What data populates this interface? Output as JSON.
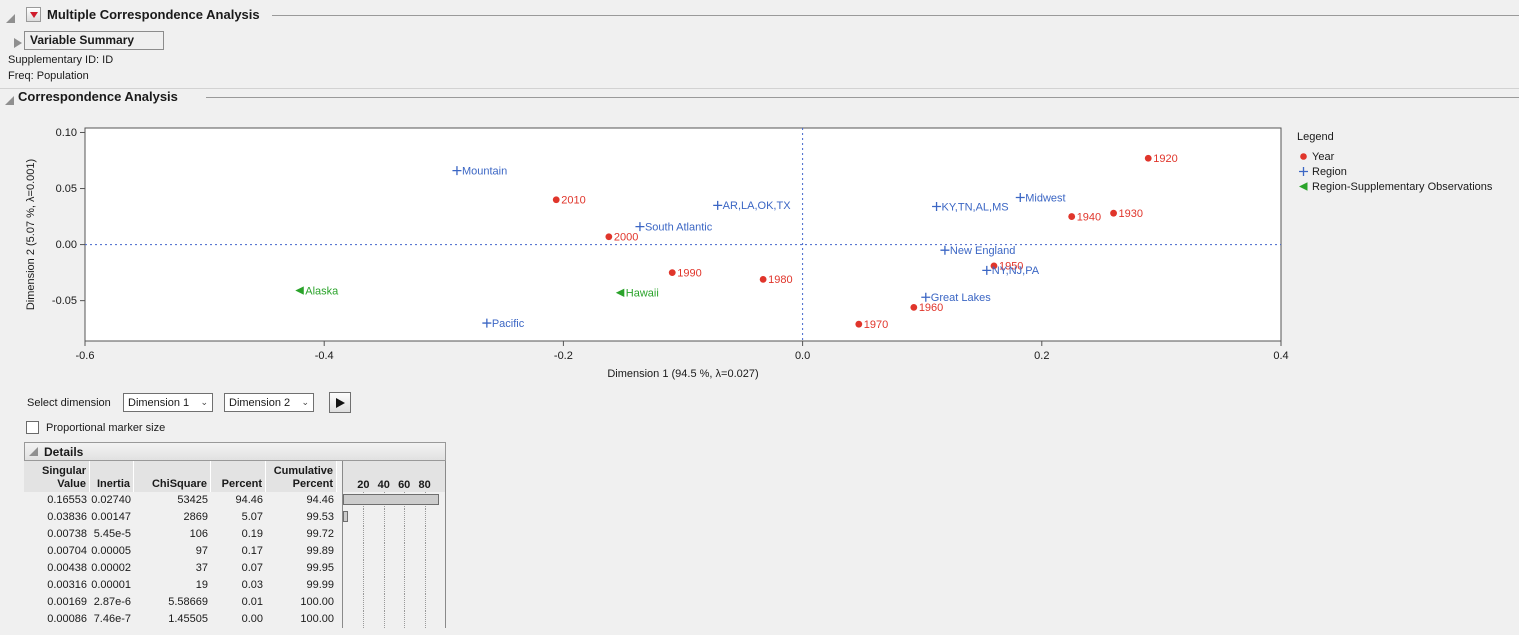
{
  "header": {
    "title": "Multiple Correspondence Analysis"
  },
  "sections": {
    "variable_summary": "Variable Summary",
    "correspondence_analysis": "Correspondence Analysis",
    "details": "Details"
  },
  "info": {
    "supplementary_id": "Supplementary ID: ID",
    "freq": "Freq: Population"
  },
  "chart_data": {
    "type": "scatter",
    "xlabel": "Dimension 1  (94.5 %, λ=0.027)",
    "ylabel": "Dimension 2  (5.07 %, λ=0.001)",
    "xlim": [
      -0.6,
      0.4
    ],
    "ylim": [
      -0.086,
      0.104
    ],
    "x_ticks": [
      {
        "v": -0.6,
        "label": "-0.6"
      },
      {
        "v": -0.4,
        "label": "-0.4"
      },
      {
        "v": -0.2,
        "label": "-0.2"
      },
      {
        "v": 0,
        "label": "0.0"
      },
      {
        "v": 0.2,
        "label": "0.2"
      },
      {
        "v": 0.4,
        "label": "0.4"
      }
    ],
    "y_ticks": [
      {
        "v": 0.1,
        "label": "0.10"
      },
      {
        "v": 0.05,
        "label": "0.05"
      },
      {
        "v": 0.0,
        "label": "0.00"
      },
      {
        "v": -0.05,
        "label": "-0.05"
      }
    ],
    "ref_line_color": "#4466cc",
    "grid": false,
    "legend_position": "right",
    "series": [
      {
        "name": "Year",
        "marker": "dot",
        "color": "#e0352b",
        "points": [
          {
            "label": "1920",
            "x": 0.289,
            "y": 0.077
          },
          {
            "label": "2010",
            "x": -0.206,
            "y": 0.04
          },
          {
            "label": "1930",
            "x": 0.26,
            "y": 0.028
          },
          {
            "label": "1940",
            "x": 0.225,
            "y": 0.025
          },
          {
            "label": "2000",
            "x": -0.162,
            "y": 0.007
          },
          {
            "label": "1950",
            "x": 0.16,
            "y": -0.019
          },
          {
            "label": "1990",
            "x": -0.109,
            "y": -0.025
          },
          {
            "label": "1980",
            "x": -0.033,
            "y": -0.031
          },
          {
            "label": "1960",
            "x": 0.093,
            "y": -0.056
          },
          {
            "label": "1970",
            "x": 0.047,
            "y": -0.071
          }
        ]
      },
      {
        "name": "Region",
        "marker": "plus",
        "color": "#3b66c4",
        "points": [
          {
            "label": "Mountain",
            "x": -0.289,
            "y": 0.066
          },
          {
            "label": "AR,LA,OK,TX",
            "x": -0.071,
            "y": 0.035
          },
          {
            "label": "KY,TN,AL,MS",
            "x": 0.112,
            "y": 0.034
          },
          {
            "label": "Midwest",
            "x": 0.182,
            "y": 0.042
          },
          {
            "label": "South Atlantic",
            "x": -0.136,
            "y": 0.016
          },
          {
            "label": "New England",
            "x": 0.119,
            "y": -0.005
          },
          {
            "label": "NY,NJ,PA",
            "x": 0.154,
            "y": -0.023
          },
          {
            "label": "Great Lakes",
            "x": 0.103,
            "y": -0.047
          },
          {
            "label": "Pacific",
            "x": -0.264,
            "y": -0.07
          }
        ]
      },
      {
        "name": "Region-Supplementary Observations",
        "marker": "triangle-left",
        "color": "#2aa32a",
        "points": [
          {
            "label": "Alaska",
            "x": -0.42,
            "y": -0.041
          },
          {
            "label": "Hawaii",
            "x": -0.152,
            "y": -0.043
          }
        ]
      }
    ]
  },
  "legend": {
    "title": "Legend",
    "items": [
      {
        "label": "Year",
        "marker": "dot",
        "color": "#e0352b"
      },
      {
        "label": "Region",
        "marker": "plus",
        "color": "#3b66c4"
      },
      {
        "label": "Region-Supplementary Observations",
        "marker": "triangle-left",
        "color": "#2aa32a"
      }
    ]
  },
  "controls": {
    "select_dimension_label": "Select dimension",
    "dimension1_value": "Dimension 1",
    "dimension2_value": "Dimension 2",
    "proportional_marker_label": "Proportional marker size"
  },
  "details_table": {
    "columns": [
      {
        "l1": "Singular",
        "l2": "Value"
      },
      {
        "l1": "",
        "l2": "Inertia"
      },
      {
        "l1": "",
        "l2": "ChiSquare"
      },
      {
        "l1": "",
        "l2": "Percent"
      },
      {
        "l1": "Cumulative",
        "l2": "Percent"
      }
    ],
    "bar_ticks": [
      20,
      40,
      60,
      80
    ],
    "rows": [
      {
        "cells": [
          "0.16553",
          "0.02740",
          "53425",
          "94.46",
          "94.46"
        ],
        "bar": 94.46
      },
      {
        "cells": [
          "0.03836",
          "0.00147",
          "2869",
          "5.07",
          "99.53"
        ],
        "bar": 5.07
      },
      {
        "cells": [
          "0.00738",
          "5.45e-5",
          "106",
          "0.19",
          "99.72"
        ],
        "bar": 0.19
      },
      {
        "cells": [
          "0.00704",
          "0.00005",
          "97",
          "0.17",
          "99.89"
        ],
        "bar": 0.17
      },
      {
        "cells": [
          "0.00438",
          "0.00002",
          "37",
          "0.07",
          "99.95"
        ],
        "bar": 0.07
      },
      {
        "cells": [
          "0.00316",
          "0.00001",
          "19",
          "0.03",
          "99.99"
        ],
        "bar": 0.03
      },
      {
        "cells": [
          "0.00169",
          "2.87e-6",
          "5.58669",
          "0.01",
          "100.00"
        ],
        "bar": 0.01
      },
      {
        "cells": [
          "0.00086",
          "7.46e-7",
          "1.45505",
          "0.00",
          "100.00"
        ],
        "bar": 0.0
      }
    ]
  }
}
